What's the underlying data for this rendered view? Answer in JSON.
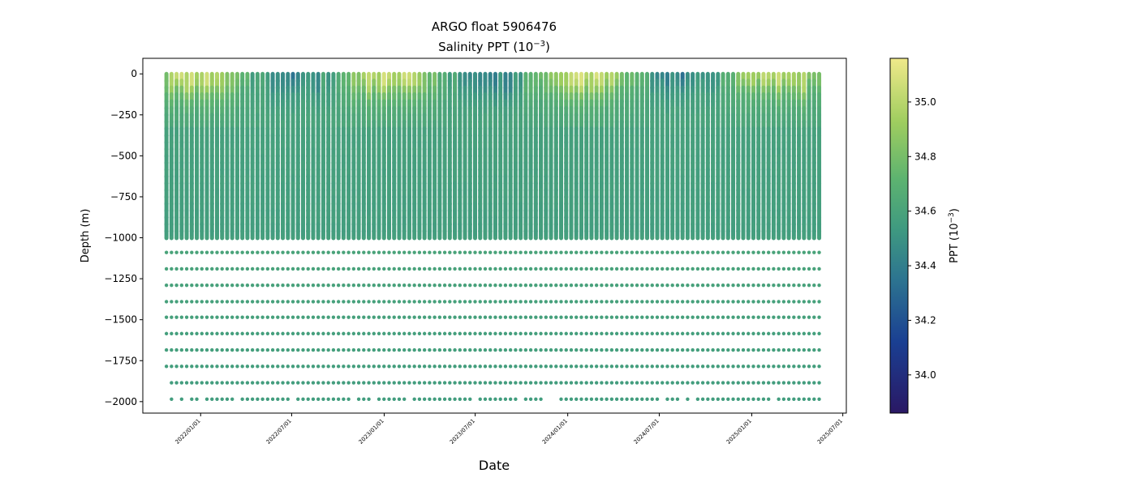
{
  "chart_data": {
    "type": "scatter",
    "title": "ARGO float 5906476",
    "subtitle_prefix": "Salinity PPT (10",
    "subtitle_exp": "−3",
    "subtitle_suffix": ")",
    "xlabel": "Date",
    "ylabel": "Depth (m)",
    "ylim": [
      -2070,
      95
    ],
    "xlim": [
      "2021-09-08",
      "2025-07-08"
    ],
    "y_ticks": [
      0,
      -250,
      -500,
      -750,
      -1000,
      -1250,
      -1500,
      -1750,
      -2000
    ],
    "y_tick_labels": [
      "0",
      "−250",
      "−500",
      "−750",
      "−1000",
      "−1250",
      "−1500",
      "−1750",
      "−2000"
    ],
    "x_ticks": [
      "2022/01/01",
      "2022/07/01",
      "2023/01/01",
      "2023/07/01",
      "2024/01/01",
      "2024/07/01",
      "2025/01/01",
      "2025/07/01"
    ],
    "profile_date_range": [
      "2021-10-25",
      "2025-05-15"
    ],
    "profile_count": 130,
    "continuous_profile_depth_range": [
      0,
      -1000
    ],
    "deep_sample_depths": [
      -1090,
      -1190,
      -1290,
      -1390,
      -1485,
      -1585,
      -1685,
      -1785,
      -1885,
      -1985
    ],
    "surface_salinity_range": [
      34.25,
      35.1
    ],
    "deep_salinity": 34.6,
    "colorbar": {
      "label_prefix": "PPT (10",
      "label_exp": "−3",
      "label_suffix": ")",
      "range": [
        33.86,
        35.16
      ],
      "ticks": [
        34.0,
        34.2,
        34.4,
        34.6,
        34.8,
        35.0
      ],
      "tick_labels": [
        "34.0",
        "34.2",
        "34.4",
        "34.6",
        "34.8",
        "35.0"
      ],
      "colormap": "haline"
    }
  }
}
